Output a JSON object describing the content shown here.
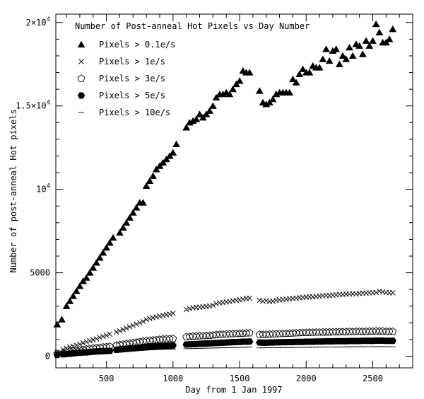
{
  "chart_data": {
    "type": "scatter",
    "title": "Number of Post-anneal Hot Pixels vs Day Number",
    "xlabel": "Day from 1 Jan 1997",
    "ylabel": "Number of post-anneal Hot pixels",
    "xlim": [
      120,
      2800
    ],
    "ylim": [
      -700,
      20500
    ],
    "grid": false,
    "legend_position": "top-left",
    "x_ticks": [
      {
        "value": 500,
        "label": "500"
      },
      {
        "value": 1000,
        "label": "1000"
      },
      {
        "value": 1500,
        "label": "1500"
      },
      {
        "value": 2000,
        "label": "2000"
      },
      {
        "value": 2500,
        "label": "2500"
      }
    ],
    "y_ticks": [
      {
        "value": 0,
        "mantissa": "0",
        "exp": ""
      },
      {
        "value": 5000,
        "mantissa": "5000",
        "exp": ""
      },
      {
        "value": 10000,
        "mantissa": "10",
        "exp": "4"
      },
      {
        "value": 15000,
        "mantissa": "1.5×10",
        "exp": "4"
      },
      {
        "value": 20000,
        "mantissa": "2×10",
        "exp": "4"
      }
    ],
    "series": [
      {
        "name": "Pixels > 0.1e/s",
        "marker": "triangle",
        "x": [
          130,
          165,
          200,
          225,
          250,
          275,
          300,
          325,
          350,
          375,
          400,
          425,
          450,
          475,
          500,
          525,
          550,
          600,
          625,
          650,
          675,
          700,
          725,
          750,
          775,
          800,
          825,
          850,
          875,
          900,
          925,
          950,
          975,
          1000,
          1025,
          1100,
          1125,
          1150,
          1175,
          1200,
          1225,
          1250,
          1275,
          1300,
          1325,
          1350,
          1375,
          1400,
          1425,
          1450,
          1475,
          1500,
          1525,
          1550,
          1575,
          1650,
          1675,
          1700,
          1725,
          1750,
          1775,
          1800,
          1825,
          1850,
          1875,
          1900,
          1925,
          1950,
          1975,
          2000,
          2025,
          2050,
          2075,
          2100,
          2125,
          2150,
          2175,
          2200,
          2225,
          2250,
          2275,
          2300,
          2325,
          2350,
          2375,
          2400,
          2425,
          2450,
          2475,
          2500,
          2525,
          2550,
          2575,
          2600,
          2625,
          2650
        ],
        "y": [
          1900,
          2200,
          3000,
          3300,
          3600,
          3900,
          4200,
          4500,
          4700,
          5000,
          5300,
          5600,
          5900,
          6200,
          6500,
          6800,
          7100,
          7400,
          7700,
          8000,
          8300,
          8600,
          8900,
          9200,
          9200,
          10200,
          10500,
          10800,
          11200,
          11400,
          11600,
          11800,
          12000,
          12200,
          12700,
          13700,
          14000,
          14100,
          14200,
          14500,
          14300,
          14500,
          14700,
          15000,
          15500,
          15700,
          15700,
          15800,
          15700,
          16000,
          16300,
          16500,
          17100,
          17000,
          17000,
          15900,
          15200,
          15100,
          15200,
          15400,
          15700,
          15800,
          15800,
          15800,
          15800,
          16600,
          16400,
          16900,
          17200,
          17000,
          17000,
          17400,
          17300,
          17300,
          17800,
          18400,
          17700,
          18300,
          18400,
          17500,
          18000,
          17800,
          18500,
          18000,
          18700,
          18600,
          18100,
          18900,
          18600,
          18900,
          19900,
          19400,
          18800,
          18800,
          19000,
          19600
        ],
        "color": "#000000"
      },
      {
        "name": "Pixels > 1e/s",
        "marker": "cross",
        "x": [
          130,
          175,
          200,
          225,
          250,
          275,
          300,
          325,
          350,
          375,
          400,
          425,
          450,
          475,
          500,
          525,
          575,
          600,
          625,
          650,
          675,
          700,
          725,
          750,
          775,
          800,
          825,
          850,
          875,
          900,
          925,
          950,
          975,
          1000,
          1100,
          1125,
          1150,
          1175,
          1200,
          1225,
          1250,
          1275,
          1300,
          1325,
          1350,
          1375,
          1400,
          1425,
          1450,
          1475,
          1500,
          1525,
          1550,
          1575,
          1650,
          1675,
          1700,
          1725,
          1750,
          1775,
          1800,
          1825,
          1850,
          1875,
          1900,
          1925,
          1950,
          1975,
          2000,
          2025,
          2050,
          2075,
          2100,
          2125,
          2150,
          2175,
          2200,
          2225,
          2250,
          2275,
          2300,
          2325,
          2350,
          2375,
          2400,
          2425,
          2450,
          2475,
          2500,
          2525,
          2550,
          2575,
          2600,
          2625,
          2650
        ],
        "y": [
          250,
          400,
          480,
          540,
          600,
          660,
          720,
          800,
          860,
          920,
          980,
          1040,
          1120,
          1180,
          1250,
          1320,
          1450,
          1520,
          1600,
          1680,
          1760,
          1840,
          1920,
          2000,
          2080,
          2200,
          2250,
          2300,
          2350,
          2400,
          2450,
          2480,
          2520,
          2570,
          2800,
          2850,
          2900,
          2920,
          2940,
          2960,
          2980,
          3000,
          3050,
          3150,
          3200,
          3220,
          3250,
          3280,
          3320,
          3350,
          3380,
          3420,
          3460,
          3480,
          3350,
          3300,
          3320,
          3280,
          3300,
          3350,
          3380,
          3400,
          3420,
          3440,
          3460,
          3480,
          3500,
          3520,
          3540,
          3560,
          3560,
          3580,
          3600,
          3620,
          3640,
          3640,
          3660,
          3680,
          3700,
          3700,
          3720,
          3730,
          3740,
          3740,
          3760,
          3780,
          3780,
          3800,
          3800,
          3820,
          3900,
          3860,
          3820,
          3800,
          3800
        ],
        "color": "#000000"
      },
      {
        "name": "Pixels > 3e/s",
        "marker": "pentagon-open",
        "x": [
          130,
          175,
          200,
          225,
          250,
          275,
          300,
          325,
          350,
          375,
          400,
          425,
          450,
          475,
          500,
          525,
          575,
          600,
          625,
          650,
          675,
          700,
          725,
          750,
          775,
          800,
          825,
          850,
          875,
          900,
          925,
          950,
          975,
          1000,
          1100,
          1125,
          1150,
          1175,
          1200,
          1225,
          1250,
          1275,
          1300,
          1325,
          1350,
          1375,
          1400,
          1425,
          1450,
          1475,
          1500,
          1525,
          1550,
          1575,
          1650,
          1675,
          1700,
          1725,
          1750,
          1775,
          1800,
          1825,
          1850,
          1875,
          1900,
          1925,
          1950,
          1975,
          2000,
          2025,
          2050,
          2075,
          2100,
          2125,
          2150,
          2175,
          2200,
          2225,
          2250,
          2275,
          2300,
          2325,
          2350,
          2375,
          2400,
          2425,
          2450,
          2475,
          2500,
          2525,
          2550,
          2575,
          2600,
          2625,
          2650
        ],
        "y": [
          150,
          200,
          250,
          280,
          300,
          330,
          360,
          390,
          420,
          450,
          480,
          500,
          520,
          540,
          560,
          580,
          650,
          680,
          710,
          740,
          770,
          800,
          830,
          860,
          890,
          920,
          940,
          960,
          980,
          1000,
          1020,
          1030,
          1040,
          1050,
          1150,
          1170,
          1190,
          1200,
          1210,
          1220,
          1230,
          1240,
          1260,
          1280,
          1300,
          1310,
          1320,
          1330,
          1340,
          1350,
          1360,
          1370,
          1380,
          1390,
          1300,
          1290,
          1300,
          1310,
          1320,
          1330,
          1340,
          1350,
          1360,
          1370,
          1380,
          1390,
          1400,
          1410,
          1410,
          1420,
          1420,
          1430,
          1430,
          1440,
          1440,
          1440,
          1450,
          1450,
          1460,
          1460,
          1460,
          1470,
          1470,
          1480,
          1480,
          1480,
          1480,
          1490,
          1490,
          1500,
          1500,
          1500,
          1480,
          1480,
          1480
        ],
        "color": "#000000"
      },
      {
        "name": "Pixels > 5e/s",
        "marker": "hexagon-filled",
        "x": [
          130,
          175,
          200,
          225,
          250,
          275,
          300,
          325,
          350,
          375,
          400,
          425,
          450,
          475,
          500,
          525,
          575,
          600,
          625,
          650,
          675,
          700,
          725,
          750,
          775,
          800,
          825,
          850,
          875,
          900,
          925,
          950,
          975,
          1000,
          1100,
          1125,
          1150,
          1175,
          1200,
          1225,
          1250,
          1275,
          1300,
          1325,
          1350,
          1375,
          1400,
          1425,
          1450,
          1475,
          1500,
          1525,
          1550,
          1575,
          1650,
          1675,
          1700,
          1725,
          1750,
          1775,
          1800,
          1825,
          1850,
          1875,
          1900,
          1925,
          1950,
          1975,
          2000,
          2025,
          2050,
          2075,
          2100,
          2125,
          2150,
          2175,
          2200,
          2225,
          2250,
          2275,
          2300,
          2325,
          2350,
          2375,
          2400,
          2425,
          2450,
          2475,
          2500,
          2525,
          2550,
          2575,
          2600,
          2625,
          2650
        ],
        "y": [
          80,
          110,
          130,
          150,
          170,
          190,
          210,
          220,
          230,
          250,
          270,
          280,
          290,
          300,
          310,
          320,
          380,
          400,
          420,
          440,
          460,
          480,
          500,
          520,
          540,
          560,
          570,
          580,
          590,
          600,
          610,
          620,
          630,
          640,
          700,
          710,
          720,
          730,
          740,
          750,
          760,
          770,
          780,
          790,
          800,
          810,
          820,
          830,
          840,
          850,
          860,
          870,
          870,
          880,
          820,
          810,
          810,
          820,
          820,
          830,
          830,
          840,
          840,
          850,
          850,
          860,
          860,
          860,
          870,
          870,
          870,
          880,
          880,
          880,
          890,
          890,
          890,
          900,
          900,
          900,
          900,
          910,
          910,
          910,
          910,
          920,
          920,
          920,
          920,
          930,
          930,
          930,
          920,
          920,
          920
        ],
        "color": "#000000"
      },
      {
        "name": "Pixels > 10e/s",
        "marker": "dash",
        "x": [
          130,
          175,
          200,
          225,
          250,
          275,
          300,
          325,
          350,
          375,
          400,
          425,
          450,
          475,
          500,
          525,
          575,
          600,
          625,
          650,
          675,
          700,
          725,
          750,
          775,
          800,
          825,
          850,
          875,
          900,
          925,
          950,
          975,
          1000,
          1100,
          1125,
          1150,
          1175,
          1200,
          1225,
          1250,
          1275,
          1300,
          1325,
          1350,
          1375,
          1400,
          1425,
          1450,
          1475,
          1500,
          1525,
          1550,
          1575,
          1650,
          1675,
          1700,
          1725,
          1750,
          1775,
          1800,
          1825,
          1850,
          1875,
          1900,
          1925,
          1950,
          1975,
          2000,
          2025,
          2050,
          2075,
          2100,
          2125,
          2150,
          2175,
          2200,
          2225,
          2250,
          2275,
          2300,
          2325,
          2350,
          2375,
          2400,
          2425,
          2450,
          2475,
          2500,
          2525,
          2550,
          2575,
          2600,
          2625,
          2650
        ],
        "y": [
          40,
          55,
          65,
          75,
          85,
          95,
          105,
          115,
          125,
          135,
          145,
          155,
          165,
          175,
          185,
          195,
          230,
          245,
          260,
          275,
          290,
          305,
          320,
          335,
          350,
          365,
          375,
          385,
          395,
          405,
          410,
          415,
          420,
          425,
          450,
          455,
          460,
          465,
          470,
          475,
          480,
          485,
          490,
          495,
          500,
          505,
          510,
          515,
          520,
          525,
          530,
          535,
          540,
          545,
          500,
          500,
          505,
          505,
          510,
          510,
          515,
          515,
          520,
          520,
          525,
          525,
          530,
          530,
          535,
          535,
          540,
          540,
          545,
          545,
          550,
          550,
          550,
          555,
          555,
          555,
          560,
          560,
          560,
          565,
          565,
          565,
          570,
          570,
          570,
          575,
          575,
          575,
          570,
          570,
          570
        ],
        "color": "#000000"
      }
    ]
  }
}
